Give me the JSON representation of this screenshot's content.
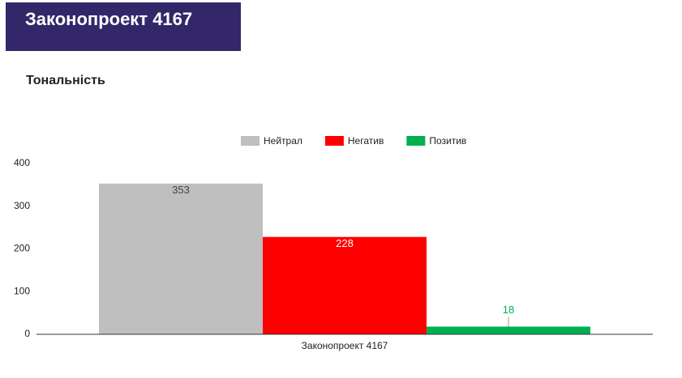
{
  "header": {
    "title": "Законопроект 4167"
  },
  "chart_data": {
    "type": "bar",
    "title": "Тональність",
    "categories": [
      "Законопроект 4167"
    ],
    "series": [
      {
        "name": "Нейтрал",
        "color": "#bfbfbf",
        "values": [
          353
        ]
      },
      {
        "name": "Негатив",
        "color": "#ff0000",
        "values": [
          228
        ]
      },
      {
        "name": "Позитив",
        "color": "#00b050",
        "values": [
          18
        ]
      }
    ],
    "ylim": [
      0,
      400
    ],
    "yticks": [
      0,
      100,
      200,
      300,
      400
    ],
    "grid": false,
    "legend": "top"
  }
}
